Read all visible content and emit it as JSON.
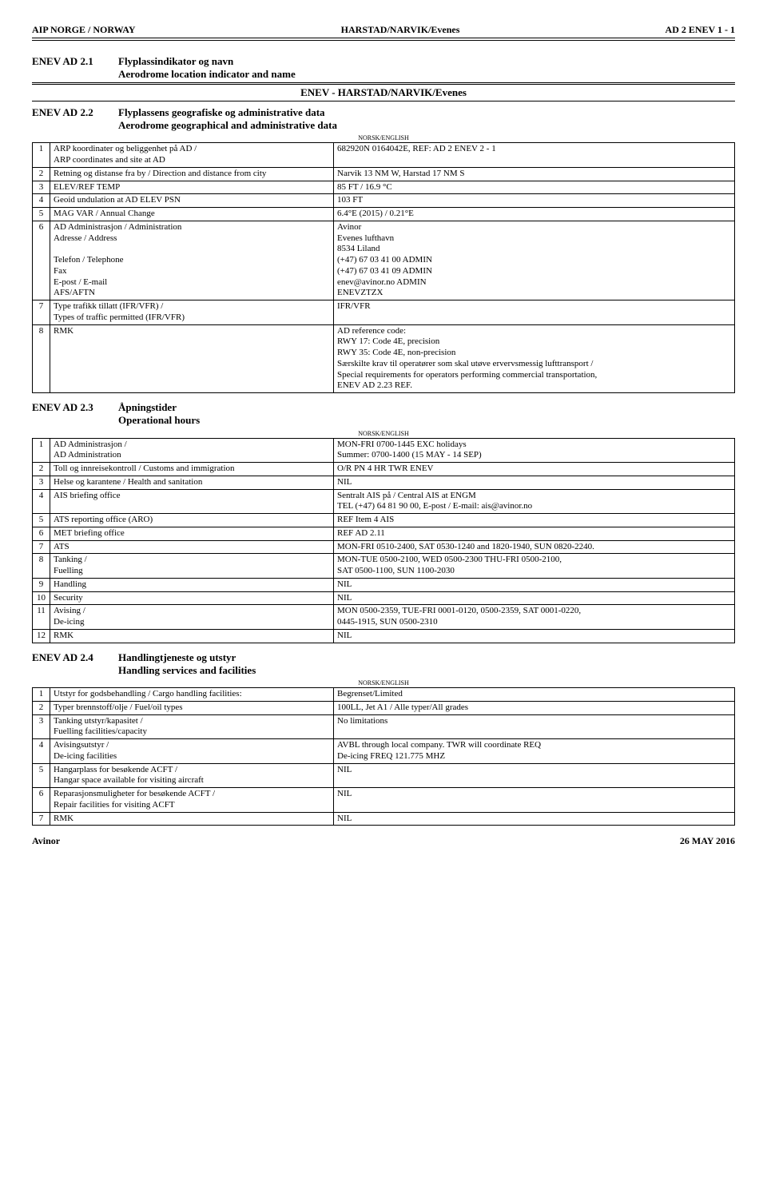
{
  "header": {
    "left": "AIP NORGE / NORWAY",
    "center": "HARSTAD/NARVIK/Evenes",
    "right": "AD 2 ENEV 1 - 1"
  },
  "sec21": {
    "id": "ENEV AD 2.1",
    "title_no": "Flyplassindikator og navn",
    "title_en": "Aerodrome location indicator and name",
    "big": "ENEV - HARSTAD/NARVIK/Evenes"
  },
  "sec22": {
    "id": "ENEV AD 2.2",
    "title_no": "Flyplassens geografiske og administrative data",
    "title_en": "Aerodrome geographical and administrative data",
    "norsk": "NORSK/ENGLISH",
    "rows": [
      {
        "n": "1",
        "label": "ARP koordinater og beliggenhet på AD /\nARP coordinates and site at AD",
        "val": "682920N 0164042E, REF: AD 2 ENEV 2 - 1"
      },
      {
        "n": "2",
        "label": "Retning og distanse fra by / Direction and distance from city",
        "val": "Narvik 13 NM W, Harstad 17 NM S"
      },
      {
        "n": "3",
        "label": "ELEV/REF TEMP",
        "val": "85 FT / 16.9 °C"
      },
      {
        "n": "4",
        "label": "Geoid undulation at AD ELEV PSN",
        "val": "103 FT"
      },
      {
        "n": "5",
        "label": "MAG VAR / Annual Change",
        "val": "6.4°E (2015) / 0.21°E"
      },
      {
        "n": "6",
        "label": "AD Administrasjon / Administration\nAdresse / Address\n\nTelefon / Telephone\nFax\nE-post / E-mail\nAFS/AFTN",
        "val": "Avinor\nEvenes lufthavn\n8534 Liland\n(+47) 67 03 41 00 ADMIN\n(+47) 67 03 41 09 ADMIN\nenev@avinor.no ADMIN\nENEVZTZX"
      },
      {
        "n": "7",
        "label": "Type trafikk tillatt (IFR/VFR) /\nTypes of traffic permitted (IFR/VFR)",
        "val": "IFR/VFR"
      },
      {
        "n": "8",
        "label": "RMK",
        "val": "AD reference code:\nRWY 17: Code 4E, precision\nRWY 35: Code 4E, non-precision\nSærskilte krav til operatører som skal utøve ervervsmessig lufttransport /\nSpecial requirements for operators performing commercial transportation,\nENEV AD 2.23 REF."
      }
    ]
  },
  "sec23": {
    "id": "ENEV AD 2.3",
    "title_no": "Åpningstider",
    "title_en": "Operational hours",
    "norsk": "NORSK/ENGLISH",
    "rows": [
      {
        "n": "1",
        "label": "AD Administrasjon /\nAD Administration",
        "val": "MON-FRI 0700-1445 EXC holidays\nSummer: 0700-1400 (15 MAY - 14 SEP)"
      },
      {
        "n": "2",
        "label": "Toll og innreisekontroll / Customs and immigration",
        "val": "O/R PN 4 HR TWR ENEV"
      },
      {
        "n": "3",
        "label": "Helse og karantene / Health and sanitation",
        "val": "NIL"
      },
      {
        "n": "4",
        "label": "AIS briefing office",
        "val": "Sentralt AIS på / Central AIS at ENGM\nTEL (+47) 64 81 90 00, E-post / E-mail: ais@avinor.no"
      },
      {
        "n": "5",
        "label": "ATS reporting office (ARO)",
        "val": "REF Item 4 AIS"
      },
      {
        "n": "6",
        "label": "MET briefing office",
        "val": "REF AD 2.11"
      },
      {
        "n": "7",
        "label": "ATS",
        "val": "MON-FRI 0510-2400, SAT 0530-1240 and 1820-1940, SUN 0820-2240."
      },
      {
        "n": "8",
        "label": "Tanking /\nFuelling",
        "val": "MON-TUE 0500-2100, WED 0500-2300 THU-FRI 0500-2100,\nSAT 0500-1100, SUN 1100-2030"
      },
      {
        "n": "9",
        "label": "Handling",
        "val": "NIL"
      },
      {
        "n": "10",
        "label": "Security",
        "val": "NIL"
      },
      {
        "n": "11",
        "label": "Avising /\nDe-icing",
        "val": "MON 0500-2359, TUE-FRI 0001-0120, 0500-2359, SAT 0001-0220,\n0445-1915, SUN 0500-2310"
      },
      {
        "n": "12",
        "label": "RMK",
        "val": "NIL"
      }
    ]
  },
  "sec24": {
    "id": "ENEV AD 2.4",
    "title_no": "Handlingtjeneste og utstyr",
    "title_en": "Handling services and facilities",
    "norsk": "NORSK/ENGLISH",
    "rows": [
      {
        "n": "1",
        "label": "Utstyr for godsbehandling / Cargo handling facilities:",
        "val": "Begrenset/Limited"
      },
      {
        "n": "2",
        "label": "Typer brennstoff/olje / Fuel/oil types",
        "val": "100LL, Jet A1 / Alle typer/All grades"
      },
      {
        "n": "3",
        "label": "Tanking utstyr/kapasitet /\nFuelling facilities/capacity",
        "val": "No limitations"
      },
      {
        "n": "4",
        "label": "Avisingsutstyr /\nDe-icing facilities",
        "val": "AVBL through local company. TWR will coordinate REQ\nDe-icing FREQ 121.775 MHZ"
      },
      {
        "n": "5",
        "label": "Hangarplass for besøkende ACFT /\nHangar space available for visiting aircraft",
        "val": "NIL"
      },
      {
        "n": "6",
        "label": "Reparasjonsmuligheter for besøkende ACFT /\nRepair facilities for visiting ACFT",
        "val": "NIL"
      },
      {
        "n": "7",
        "label": "RMK",
        "val": "NIL"
      }
    ]
  },
  "footer": {
    "left": "Avinor",
    "right": "26 MAY 2016"
  }
}
